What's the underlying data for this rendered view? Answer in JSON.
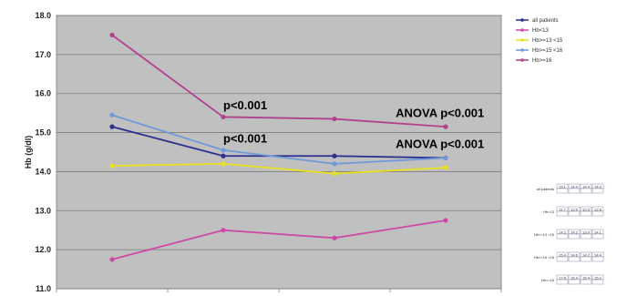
{
  "chart_data": {
    "type": "line",
    "ylabel": "Hb (g/dl)",
    "ylim": [
      11.0,
      18.0
    ],
    "yticks": [
      "11.0",
      "12.0",
      "13.0",
      "14.0",
      "15.0",
      "16.0",
      "17.0",
      "18.0"
    ],
    "x": [
      1,
      2,
      3,
      4
    ],
    "grid": true,
    "legend_position": "top-right",
    "series": [
      {
        "name": "all patients",
        "color": "#2b2f8f",
        "values": [
          15.15,
          14.4,
          14.4,
          14.35
        ]
      },
      {
        "name": "Hb<13",
        "color": "#cc4aa6",
        "values": [
          11.75,
          12.5,
          12.3,
          12.75
        ]
      },
      {
        "name": "Hb>=13 <15",
        "color": "#e8e020",
        "values": [
          14.15,
          14.2,
          13.95,
          14.1
        ]
      },
      {
        "name": "Hb>=15 <16",
        "color": "#6f9ad8",
        "values": [
          15.45,
          14.55,
          14.2,
          14.35
        ]
      },
      {
        "name": "Hb>=16",
        "color": "#b0418f",
        "values": [
          17.5,
          15.4,
          15.35,
          15.15
        ]
      }
    ],
    "annotations": [
      {
        "text": "p<0.001",
        "x": 2,
        "y": 15.6
      },
      {
        "text": "ANOVA p<0.001",
        "x": 3.55,
        "y": 15.4
      },
      {
        "text": "p<0.001",
        "x": 2,
        "y": 14.75
      },
      {
        "text": "ANOVA p<0.001",
        "x": 3.55,
        "y": 14.6
      }
    ],
    "table": {
      "rows": [
        {
          "label": "all patients",
          "cells": [
            "15.1",
            "14.4",
            "14.4",
            "14.3"
          ]
        },
        {
          "label": "Hb<13",
          "cells": [
            "11.7",
            "12.5",
            "12.3",
            "12.8"
          ]
        },
        {
          "label": "Hb>=13 <15",
          "cells": [
            "14.2",
            "14.2",
            "13.9",
            "14.1"
          ]
        },
        {
          "label": "Hb>=15 <16",
          "cells": [
            "15.4",
            "14.6",
            "14.2",
            "14.4"
          ]
        },
        {
          "label": "Hb>=16",
          "cells": [
            "17.5",
            "15.4",
            "15.4",
            "15.2"
          ]
        }
      ]
    }
  }
}
